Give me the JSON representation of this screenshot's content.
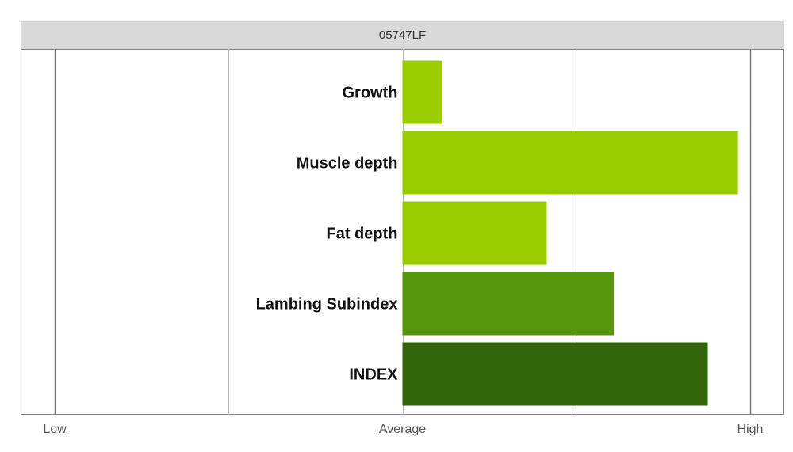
{
  "chart_data": {
    "type": "bar",
    "orientation": "horizontal",
    "title": "05747LF",
    "categories": [
      "Growth",
      "Muscle depth",
      "Fat depth",
      "Lambing Subindex",
      "INDEX"
    ],
    "values": [
      0.115,
      0.965,
      0.415,
      0.608,
      0.878
    ],
    "colors": [
      "#99cc00",
      "#99cc00",
      "#99cc00",
      "#55960a",
      "#33650b"
    ],
    "xlim": [
      -1,
      1
    ],
    "x_ticks": [
      {
        "value": -1,
        "label": "Low"
      },
      {
        "value": 0,
        "label": "Average"
      },
      {
        "value": 1,
        "label": "High"
      }
    ],
    "gridlines": [
      -1,
      -0.5,
      0,
      0.5,
      1
    ],
    "grid": true,
    "legend": "none"
  }
}
